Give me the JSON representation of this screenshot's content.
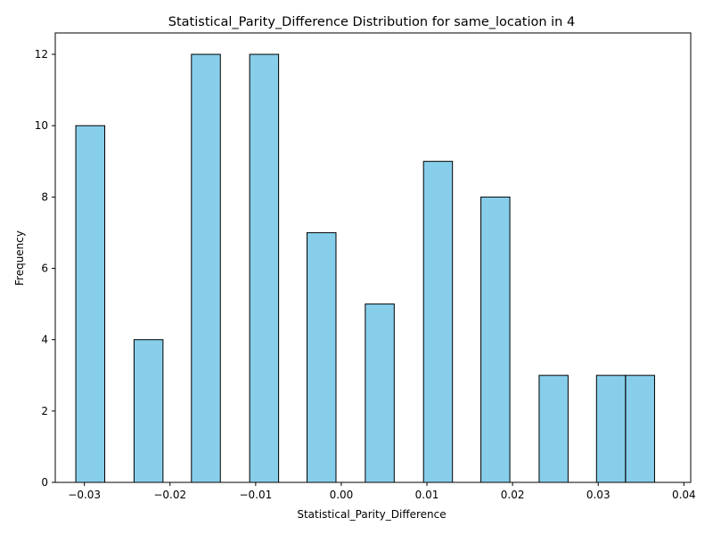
{
  "chart_data": {
    "type": "bar",
    "title": "Statistical_Parity_Difference Distribution for same_location in 4",
    "xlabel": "Statistical_Parity_Difference",
    "ylabel": "Frequency",
    "xlim": [
      -0.0334,
      0.0408
    ],
    "ylim": [
      0,
      12.6
    ],
    "x_ticks": [
      -0.03,
      -0.02,
      -0.01,
      0.0,
      0.01,
      0.02,
      0.03,
      0.04
    ],
    "x_tick_labels": [
      "−0.03",
      "−0.02",
      "−0.01",
      "0.00",
      "0.01",
      "0.02",
      "0.03",
      "0.04"
    ],
    "y_ticks": [
      0,
      2,
      4,
      6,
      8,
      10,
      12
    ],
    "y_tick_labels": [
      "0",
      "2",
      "4",
      "6",
      "8",
      "10",
      "12"
    ],
    "bin_width": 0.00338,
    "bins": [
      {
        "left": -0.031,
        "count": 10
      },
      {
        "left": -0.0242,
        "count": 4
      },
      {
        "left": -0.0175,
        "count": 12
      },
      {
        "left": -0.0107,
        "count": 12
      },
      {
        "left": -0.004,
        "count": 7
      },
      {
        "left": 0.0028,
        "count": 5
      },
      {
        "left": 0.0096,
        "count": 9
      },
      {
        "left": 0.0163,
        "count": 8
      },
      {
        "left": 0.0231,
        "count": 3
      },
      {
        "left": 0.0298,
        "count": 3
      },
      {
        "left": 0.0332,
        "count": 3
      }
    ],
    "bar_color": "#87CEEB",
    "edge_color": "#000000",
    "grid": false,
    "legend": "none"
  }
}
